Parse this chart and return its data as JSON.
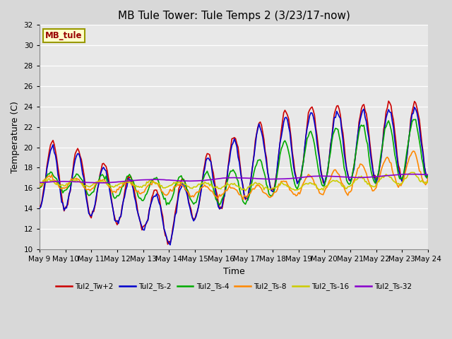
{
  "title": "MB Tule Tower: Tule Temps 2 (3/23/17-now)",
  "xlabel": "Time",
  "ylabel": "Temperature (C)",
  "ylim": [
    10,
    32
  ],
  "yticks": [
    10,
    12,
    14,
    16,
    18,
    20,
    22,
    24,
    26,
    28,
    30,
    32
  ],
  "x_labels": [
    "May 9",
    "May 10",
    "May 11",
    "May 12",
    "May 13",
    "May 14",
    "May 15",
    "May 16",
    "May 17",
    "May 18",
    "May 19",
    "May 20",
    "May 21",
    "May 22",
    "May 23",
    "May 24"
  ],
  "series": {
    "Tul2_Tw+2": {
      "color": "#cc0000",
      "lw": 1.2
    },
    "Tul2_Ts-2": {
      "color": "#0000cc",
      "lw": 1.2
    },
    "Tul2_Ts-4": {
      "color": "#00aa00",
      "lw": 1.2
    },
    "Tul2_Ts-8": {
      "color": "#ff8800",
      "lw": 1.2
    },
    "Tul2_Ts-16": {
      "color": "#cccc00",
      "lw": 1.2
    },
    "Tul2_Ts-32": {
      "color": "#8800cc",
      "lw": 1.2
    }
  },
  "legend_label": "MB_tule",
  "bg_color": "#d8d8d8",
  "plot_bg": "#e8e8e8",
  "grid_color": "#ffffff",
  "title_fontsize": 11,
  "axis_fontsize": 9,
  "tick_fontsize": 7.5
}
